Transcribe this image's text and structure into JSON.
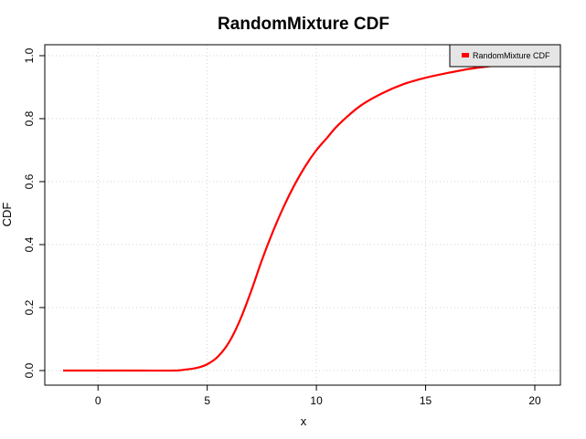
{
  "chart_data": {
    "type": "line",
    "title": "RandomMixture CDF",
    "xlabel": "x",
    "ylabel": "CDF",
    "xlim": [
      -1.6,
      20
    ],
    "ylim": [
      0,
      1
    ],
    "xticks": [
      "0",
      "5",
      "10",
      "15",
      "20"
    ],
    "yticks": [
      "0.0",
      "0.2",
      "0.4",
      "0.6",
      "0.8",
      "1.0"
    ],
    "grid": true,
    "legend_position": "top-right",
    "series": [
      {
        "name": "RandomMixture CDF",
        "color": "#ff0000",
        "x": [
          -1.6,
          0,
          2,
          3.5,
          4,
          4.5,
          5,
          5.5,
          6,
          6.5,
          7,
          7.5,
          8,
          8.5,
          9,
          9.5,
          10,
          10.5,
          11,
          12,
          13,
          14,
          15,
          16,
          17,
          18,
          19,
          20
        ],
        "y": [
          0.0,
          0.0,
          0.0,
          0.0,
          0.003,
          0.008,
          0.02,
          0.045,
          0.09,
          0.16,
          0.25,
          0.35,
          0.44,
          0.52,
          0.59,
          0.65,
          0.7,
          0.74,
          0.78,
          0.84,
          0.88,
          0.91,
          0.93,
          0.945,
          0.958,
          0.967,
          0.975,
          0.98
        ]
      }
    ]
  }
}
